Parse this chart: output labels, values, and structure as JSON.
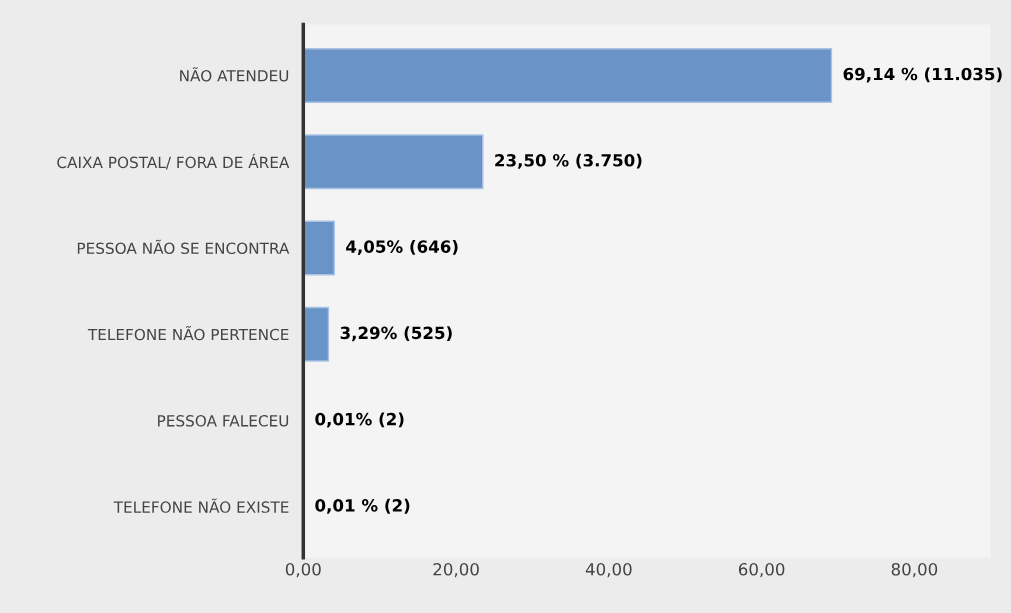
{
  "chart_data": {
    "type": "bar",
    "orientation": "horizontal",
    "categories": [
      "NÃO ATENDEU",
      "CAIXA POSTAL/ FORA DE ÁREA",
      "PESSOA NÃO SE ENCONTRA",
      "TELEFONE NÃO PERTENCE",
      "PESSOA FALECEU",
      "TELEFONE NÃO EXISTE"
    ],
    "values": [
      69.14,
      23.5,
      4.05,
      3.29,
      0.01,
      0.01
    ],
    "value_labels": [
      "69,14 % (11.035)",
      "23,50 % (3.750)",
      "4,05% (646)",
      "3,29% (525)",
      "0,01% (2)",
      "0,01 % (2)"
    ],
    "color": "#6a93c8",
    "xlim": [
      0,
      90
    ],
    "xticks": [
      {
        "value": 0,
        "label": "0,00"
      },
      {
        "value": 20,
        "label": "20,00"
      },
      {
        "value": 40,
        "label": "40,00"
      },
      {
        "value": 60,
        "label": "60,00"
      },
      {
        "value": 80,
        "label": "80,00"
      }
    ],
    "grid": false
  }
}
